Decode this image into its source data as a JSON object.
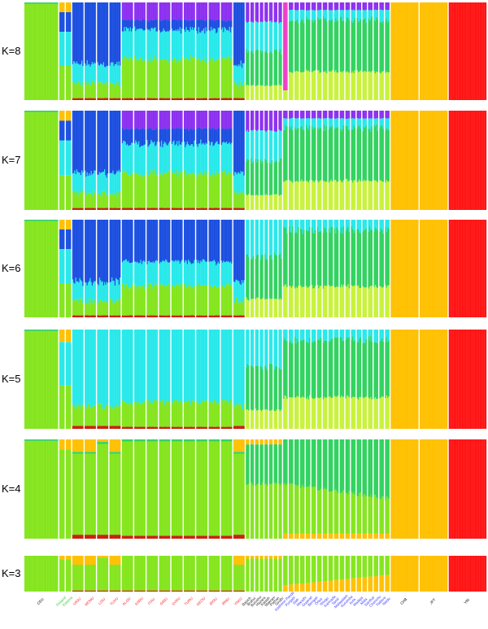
{
  "chart_data": {
    "type": "bar",
    "subtype": "stacked-admixture",
    "title": "",
    "xlabel": "",
    "ylabel": "",
    "ylim": [
      0,
      1
    ],
    "legend": "none",
    "grid": false,
    "colors": {
      "green": "#84e51c",
      "lightgreen": "#c8f23a",
      "seagreen": "#2fd25e",
      "cyan": "#27e8ea",
      "blue": "#1a4ee0",
      "purple": "#8b2ff0",
      "magenta": "#f03cc8",
      "orange": "#ffc000",
      "red": "#ff1414",
      "darkred": "#c81e0a",
      "separator": "#ffffff"
    },
    "populations": [
      {
        "label": "CEU",
        "label_color": "#000000"
      },
      {
        "label": "Finland",
        "label_color": "#33cc33"
      },
      {
        "label": "Estonia",
        "label_color": "#33cc33"
      },
      {
        "label": "UIGU",
        "label_color": "#ff2020"
      },
      {
        "label": "MONU",
        "label_color": "#ff2020"
      },
      {
        "label": "LISU",
        "label_color": "#ff2020"
      },
      {
        "label": "TUVU",
        "label_color": "#ff2020"
      },
      {
        "label": "ALGU",
        "label_color": "#ff2020"
      },
      {
        "label": "ASRU",
        "label_color": "#ff2020"
      },
      {
        "label": "ITAU",
        "label_color": "#ff2020"
      },
      {
        "label": "GRIU",
        "label_color": "#ff2020"
      },
      {
        "label": "SYRU",
        "label_color": "#ff2020"
      },
      {
        "label": "TURU",
        "label_color": "#ff2020"
      },
      {
        "label": "GEOU",
        "label_color": "#ff2020"
      },
      {
        "label": "IROU",
        "label_color": "#ff2020"
      },
      {
        "label": "IRNU",
        "label_color": "#ff2020"
      },
      {
        "label": "YAKU",
        "label_color": "#ff2020"
      },
      {
        "label": "Baloch",
        "label_color": "#222222"
      },
      {
        "label": "Brahui",
        "label_color": "#222222"
      },
      {
        "label": "Burusho",
        "label_color": "#222222"
      },
      {
        "label": "Hazara",
        "label_color": "#222222"
      },
      {
        "label": "Kalash",
        "label_color": "#222222"
      },
      {
        "label": "Makrani",
        "label_color": "#222222"
      },
      {
        "label": "Pathan",
        "label_color": "#222222"
      },
      {
        "label": "Sindhi",
        "label_color": "#222222"
      },
      {
        "label": "Kashmiri Pandit",
        "label_color": "#3333ff"
      },
      {
        "label": "Punjabi",
        "label_color": "#3333ff"
      },
      {
        "label": "Sikh",
        "label_color": "#3333ff"
      },
      {
        "label": "Marathi",
        "label_color": "#3333ff"
      },
      {
        "label": "Gujarati",
        "label_color": "#3333ff"
      },
      {
        "label": "Bengali",
        "label_color": "#3333ff"
      },
      {
        "label": "Oriya",
        "label_color": "#3333ff"
      },
      {
        "label": "Telugu",
        "label_color": "#3333ff"
      },
      {
        "label": "Kannada",
        "label_color": "#3333ff"
      },
      {
        "label": "Tamil",
        "label_color": "#3333ff"
      },
      {
        "label": "Malayalam",
        "label_color": "#3333ff"
      },
      {
        "label": "Kurumba",
        "label_color": "#3333ff"
      },
      {
        "label": "Irula",
        "label_color": "#3333ff"
      },
      {
        "label": "Madiga",
        "label_color": "#3333ff"
      },
      {
        "label": "Mala",
        "label_color": "#3333ff"
      },
      {
        "label": "Santhal",
        "label_color": "#3333ff"
      },
      {
        "label": "Chenchu",
        "label_color": "#3333ff"
      },
      {
        "label": "Yadava",
        "label_color": "#3333ff"
      },
      {
        "label": "Naidu",
        "label_color": "#3333ff"
      },
      {
        "label": "CHB",
        "label_color": "#000000"
      },
      {
        "label": "JPT",
        "label_color": "#000000"
      },
      {
        "label": "YRI",
        "label_color": "#000000"
      }
    ],
    "panels": [
      {
        "k_label": "K=8",
        "k": 8
      },
      {
        "k_label": "K=7",
        "k": 7
      },
      {
        "k_label": "K=6",
        "k": 6
      },
      {
        "k_label": "K=5",
        "k": 5
      },
      {
        "k_label": "K=4",
        "k": 4
      },
      {
        "k_label": "K=3",
        "k": 3
      }
    ]
  }
}
